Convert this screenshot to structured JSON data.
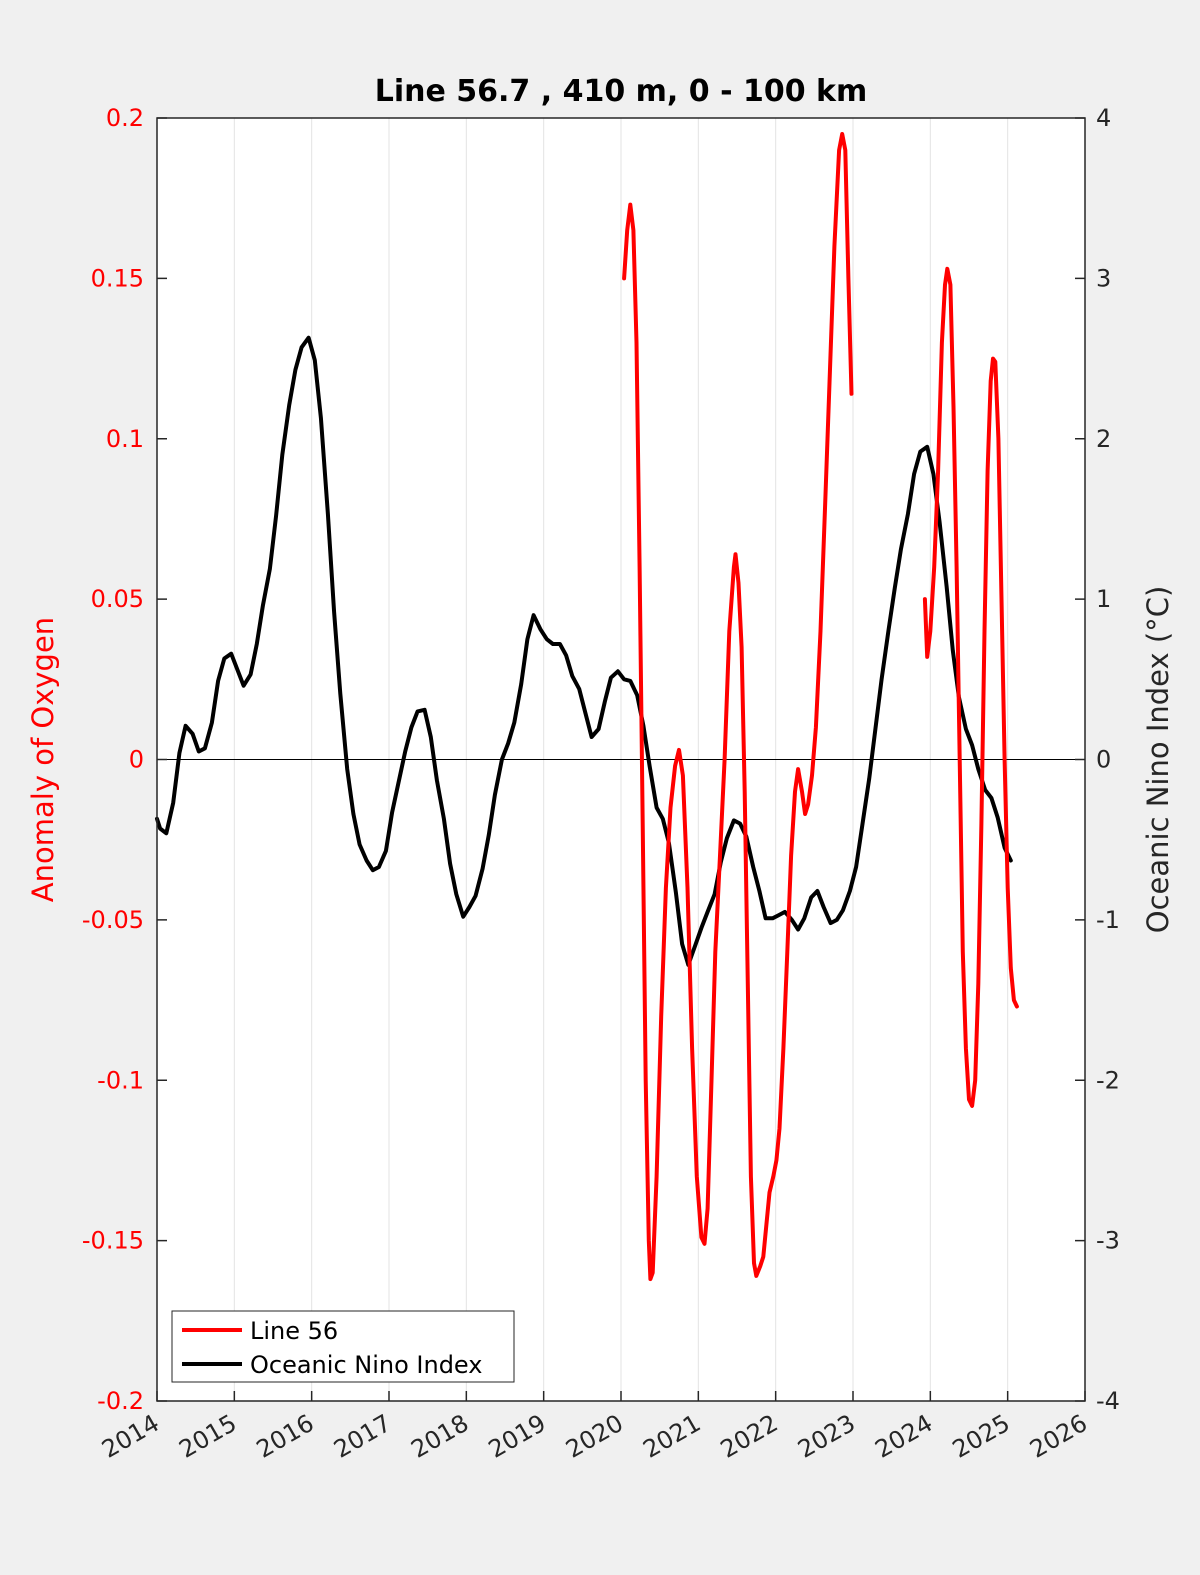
{
  "chart_data": {
    "type": "line",
    "title": "Line 56.7 , 410 m, 0 - 100 km",
    "ylabel_left": "Anomaly of Oxygen",
    "ylabel_right": "Oceanic Nino Index (°C)",
    "xlim": [
      2014,
      2026
    ],
    "ylim_left": [
      -0.2,
      0.2
    ],
    "ylim_right": [
      -4,
      4
    ],
    "x_ticks": [
      "2014",
      "2015",
      "2016",
      "2017",
      "2018",
      "2019",
      "2020",
      "2021",
      "2022",
      "2023",
      "2024",
      "2025",
      "2026"
    ],
    "y_left_ticks": [
      "0.2",
      "0.15",
      "0.1",
      "0.05",
      "0",
      "-0.05",
      "-0.1",
      "-0.15",
      "-0.2"
    ],
    "y_right_ticks": [
      "4",
      "3",
      "2",
      "1",
      "0",
      "-1",
      "-2",
      "-3",
      "-4"
    ],
    "grid": "vertical",
    "legend_position": "bottom-left",
    "series": [
      {
        "name": "Line 56",
        "axis": "left",
        "color": "#ff0000",
        "segments": [
          [
            [
              2020.04,
              0.15
            ],
            [
              2020.08,
              0.165
            ],
            [
              2020.12,
              0.173
            ],
            [
              2020.16,
              0.165
            ],
            [
              2020.2,
              0.13
            ],
            [
              2020.24,
              0.06
            ],
            [
              2020.28,
              -0.02
            ],
            [
              2020.32,
              -0.1
            ],
            [
              2020.36,
              -0.15
            ],
            [
              2020.38,
              -0.162
            ],
            [
              2020.41,
              -0.16
            ],
            [
              2020.46,
              -0.13
            ],
            [
              2020.52,
              -0.08
            ],
            [
              2020.58,
              -0.04
            ],
            [
              2020.64,
              -0.015
            ],
            [
              2020.7,
              -0.002
            ],
            [
              2020.75,
              0.003
            ],
            [
              2020.8,
              -0.005
            ],
            [
              2020.86,
              -0.04
            ],
            [
              2020.92,
              -0.09
            ],
            [
              2020.98,
              -0.13
            ],
            [
              2021.04,
              -0.149
            ],
            [
              2021.08,
              -0.151
            ],
            [
              2021.12,
              -0.14
            ],
            [
              2021.17,
              -0.1
            ],
            [
              2021.22,
              -0.06
            ],
            [
              2021.28,
              -0.03
            ],
            [
              2021.34,
              0.0
            ],
            [
              2021.4,
              0.04
            ],
            [
              2021.46,
              0.06
            ],
            [
              2021.48,
              0.064
            ],
            [
              2021.52,
              0.055
            ],
            [
              2021.56,
              0.035
            ],
            [
              2021.6,
              -0.01
            ],
            [
              2021.64,
              -0.07
            ],
            [
              2021.68,
              -0.13
            ],
            [
              2021.72,
              -0.157
            ],
            [
              2021.75,
              -0.161
            ],
            [
              2021.8,
              -0.158
            ],
            [
              2021.84,
              -0.155
            ],
            [
              2021.88,
              -0.145
            ],
            [
              2021.92,
              -0.135
            ],
            [
              2021.97,
              -0.13
            ],
            [
              2022.01,
              -0.125
            ],
            [
              2022.05,
              -0.115
            ],
            [
              2022.1,
              -0.09
            ],
            [
              2022.15,
              -0.06
            ],
            [
              2022.2,
              -0.03
            ],
            [
              2022.25,
              -0.01
            ],
            [
              2022.29,
              -0.003
            ],
            [
              2022.34,
              -0.01
            ],
            [
              2022.38,
              -0.017
            ],
            [
              2022.42,
              -0.014
            ],
            [
              2022.47,
              -0.005
            ],
            [
              2022.52,
              0.01
            ],
            [
              2022.58,
              0.04
            ],
            [
              2022.64,
              0.08
            ],
            [
              2022.7,
              0.12
            ],
            [
              2022.76,
              0.16
            ],
            [
              2022.82,
              0.19
            ],
            [
              2022.86,
              0.195
            ],
            [
              2022.9,
              0.19
            ],
            [
              2022.94,
              0.15
            ],
            [
              2022.98,
              0.114
            ]
          ],
          [
            [
              2023.93,
              0.05
            ],
            [
              2023.96,
              0.032
            ],
            [
              2024.0,
              0.04
            ],
            [
              2024.05,
              0.06
            ],
            [
              2024.1,
              0.09
            ],
            [
              2024.15,
              0.13
            ],
            [
              2024.19,
              0.148
            ],
            [
              2024.22,
              0.153
            ],
            [
              2024.26,
              0.148
            ],
            [
              2024.3,
              0.11
            ],
            [
              2024.34,
              0.06
            ],
            [
              2024.38,
              0.0
            ],
            [
              2024.42,
              -0.06
            ],
            [
              2024.46,
              -0.09
            ],
            [
              2024.5,
              -0.106
            ],
            [
              2024.54,
              -0.108
            ],
            [
              2024.58,
              -0.1
            ],
            [
              2024.62,
              -0.07
            ],
            [
              2024.66,
              -0.02
            ],
            [
              2024.7,
              0.04
            ],
            [
              2024.74,
              0.09
            ],
            [
              2024.78,
              0.118
            ],
            [
              2024.81,
              0.125
            ],
            [
              2024.84,
              0.124
            ],
            [
              2024.88,
              0.1
            ],
            [
              2024.92,
              0.05
            ],
            [
              2024.96,
              0.0
            ],
            [
              2025.0,
              -0.04
            ],
            [
              2025.04,
              -0.065
            ],
            [
              2025.08,
              -0.075
            ],
            [
              2025.12,
              -0.077
            ]
          ]
        ]
      },
      {
        "name": "Oceanic Nino Index",
        "axis": "right",
        "color": "#000000",
        "segments": [
          [
            [
              2014.0,
              -0.37
            ],
            [
              2014.04,
              -0.43
            ],
            [
              2014.12,
              -0.46
            ],
            [
              2014.21,
              -0.27
            ],
            [
              2014.29,
              0.04
            ],
            [
              2014.37,
              0.21
            ],
            [
              2014.46,
              0.16
            ],
            [
              2014.54,
              0.05
            ],
            [
              2014.62,
              0.07
            ],
            [
              2014.71,
              0.23
            ],
            [
              2014.79,
              0.49
            ],
            [
              2014.87,
              0.63
            ],
            [
              2014.96,
              0.66
            ],
            [
              2015.04,
              0.56
            ],
            [
              2015.12,
              0.46
            ],
            [
              2015.21,
              0.53
            ],
            [
              2015.29,
              0.72
            ],
            [
              2015.37,
              0.96
            ],
            [
              2015.46,
              1.19
            ],
            [
              2015.54,
              1.52
            ],
            [
              2015.62,
              1.9
            ],
            [
              2015.71,
              2.21
            ],
            [
              2015.79,
              2.43
            ],
            [
              2015.87,
              2.57
            ],
            [
              2015.96,
              2.63
            ],
            [
              2016.04,
              2.49
            ],
            [
              2016.12,
              2.13
            ],
            [
              2016.21,
              1.53
            ],
            [
              2016.29,
              0.92
            ],
            [
              2016.37,
              0.41
            ],
            [
              2016.46,
              -0.06
            ],
            [
              2016.54,
              -0.34
            ],
            [
              2016.62,
              -0.53
            ],
            [
              2016.71,
              -0.63
            ],
            [
              2016.79,
              -0.69
            ],
            [
              2016.87,
              -0.67
            ],
            [
              2016.96,
              -0.57
            ],
            [
              2017.04,
              -0.33
            ],
            [
              2017.12,
              -0.15
            ],
            [
              2017.21,
              0.05
            ],
            [
              2017.29,
              0.2
            ],
            [
              2017.37,
              0.3
            ],
            [
              2017.46,
              0.31
            ],
            [
              2017.54,
              0.14
            ],
            [
              2017.62,
              -0.13
            ],
            [
              2017.71,
              -0.37
            ],
            [
              2017.79,
              -0.65
            ],
            [
              2017.87,
              -0.84
            ],
            [
              2017.96,
              -0.98
            ],
            [
              2018.04,
              -0.92
            ],
            [
              2018.12,
              -0.85
            ],
            [
              2018.21,
              -0.68
            ],
            [
              2018.29,
              -0.47
            ],
            [
              2018.37,
              -0.22
            ],
            [
              2018.46,
              0.0
            ],
            [
              2018.54,
              0.1
            ],
            [
              2018.62,
              0.23
            ],
            [
              2018.71,
              0.47
            ],
            [
              2018.79,
              0.75
            ],
            [
              2018.87,
              0.9
            ],
            [
              2018.96,
              0.81
            ],
            [
              2019.04,
              0.75
            ],
            [
              2019.12,
              0.72
            ],
            [
              2019.21,
              0.72
            ],
            [
              2019.29,
              0.65
            ],
            [
              2019.37,
              0.52
            ],
            [
              2019.46,
              0.44
            ],
            [
              2019.54,
              0.29
            ],
            [
              2019.62,
              0.14
            ],
            [
              2019.71,
              0.19
            ],
            [
              2019.79,
              0.36
            ],
            [
              2019.87,
              0.51
            ],
            [
              2019.96,
              0.55
            ],
            [
              2020.04,
              0.5
            ],
            [
              2020.12,
              0.49
            ],
            [
              2020.21,
              0.4
            ],
            [
              2020.29,
              0.21
            ],
            [
              2020.37,
              -0.04
            ],
            [
              2020.46,
              -0.3
            ],
            [
              2020.54,
              -0.37
            ],
            [
              2020.62,
              -0.52
            ],
            [
              2020.71,
              -0.83
            ],
            [
              2020.79,
              -1.15
            ],
            [
              2020.87,
              -1.28
            ],
            [
              2020.96,
              -1.16
            ],
            [
              2021.04,
              -1.05
            ],
            [
              2021.12,
              -0.95
            ],
            [
              2021.21,
              -0.84
            ],
            [
              2021.29,
              -0.64
            ],
            [
              2021.37,
              -0.49
            ],
            [
              2021.46,
              -0.38
            ],
            [
              2021.54,
              -0.4
            ],
            [
              2021.62,
              -0.48
            ],
            [
              2021.71,
              -0.67
            ],
            [
              2021.79,
              -0.82
            ],
            [
              2021.87,
              -0.99
            ],
            [
              2021.96,
              -0.99
            ],
            [
              2022.04,
              -0.97
            ],
            [
              2022.12,
              -0.95
            ],
            [
              2022.21,
              -1.0
            ],
            [
              2022.29,
              -1.06
            ],
            [
              2022.37,
              -0.99
            ],
            [
              2022.46,
              -0.86
            ],
            [
              2022.54,
              -0.82
            ],
            [
              2022.62,
              -0.92
            ],
            [
              2022.71,
              -1.02
            ],
            [
              2022.79,
              -1.0
            ],
            [
              2022.87,
              -0.94
            ],
            [
              2022.96,
              -0.82
            ],
            [
              2023.04,
              -0.67
            ],
            [
              2023.12,
              -0.41
            ],
            [
              2023.21,
              -0.12
            ],
            [
              2023.29,
              0.19
            ],
            [
              2023.37,
              0.5
            ],
            [
              2023.46,
              0.81
            ],
            [
              2023.54,
              1.07
            ],
            [
              2023.62,
              1.31
            ],
            [
              2023.71,
              1.53
            ],
            [
              2023.79,
              1.78
            ],
            [
              2023.87,
              1.92
            ],
            [
              2023.96,
              1.95
            ],
            [
              2024.04,
              1.78
            ],
            [
              2024.12,
              1.48
            ],
            [
              2024.21,
              1.08
            ],
            [
              2024.29,
              0.68
            ],
            [
              2024.37,
              0.39
            ],
            [
              2024.46,
              0.19
            ],
            [
              2024.54,
              0.09
            ],
            [
              2024.62,
              -0.06
            ],
            [
              2024.71,
              -0.19
            ],
            [
              2024.79,
              -0.24
            ],
            [
              2024.87,
              -0.36
            ],
            [
              2024.96,
              -0.55
            ],
            [
              2025.04,
              -0.63
            ]
          ]
        ]
      }
    ]
  }
}
